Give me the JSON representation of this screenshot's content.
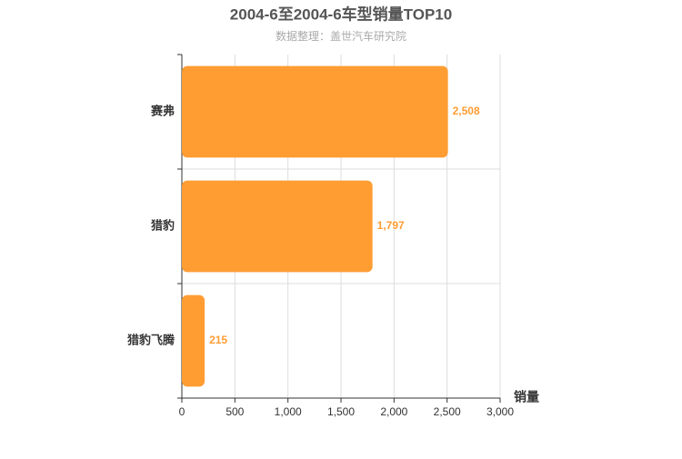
{
  "chart_data": {
    "type": "bar",
    "orientation": "horizontal",
    "title": "2004-6至2004-6车型销量TOP10",
    "subtitle": "数据整理：盖世汽车研究院",
    "x_label": "销量",
    "categories": [
      "赛弗",
      "猎豹",
      "猎豹飞腾"
    ],
    "values": [
      2508,
      1797,
      215
    ],
    "value_labels": [
      "2,508",
      "1,797",
      "215"
    ],
    "color": "#ff9d33",
    "xlim": [
      0,
      3000
    ],
    "xticks": [
      0,
      500,
      {
        "value": 1000,
        "label": "1,000"
      },
      {
        "value": 1500,
        "label": "1,500"
      },
      {
        "value": 2000,
        "label": "2,000"
      },
      {
        "value": 2500,
        "label": "2,500"
      },
      {
        "value": 3000,
        "label": "3,000"
      }
    ],
    "grid": true
  }
}
